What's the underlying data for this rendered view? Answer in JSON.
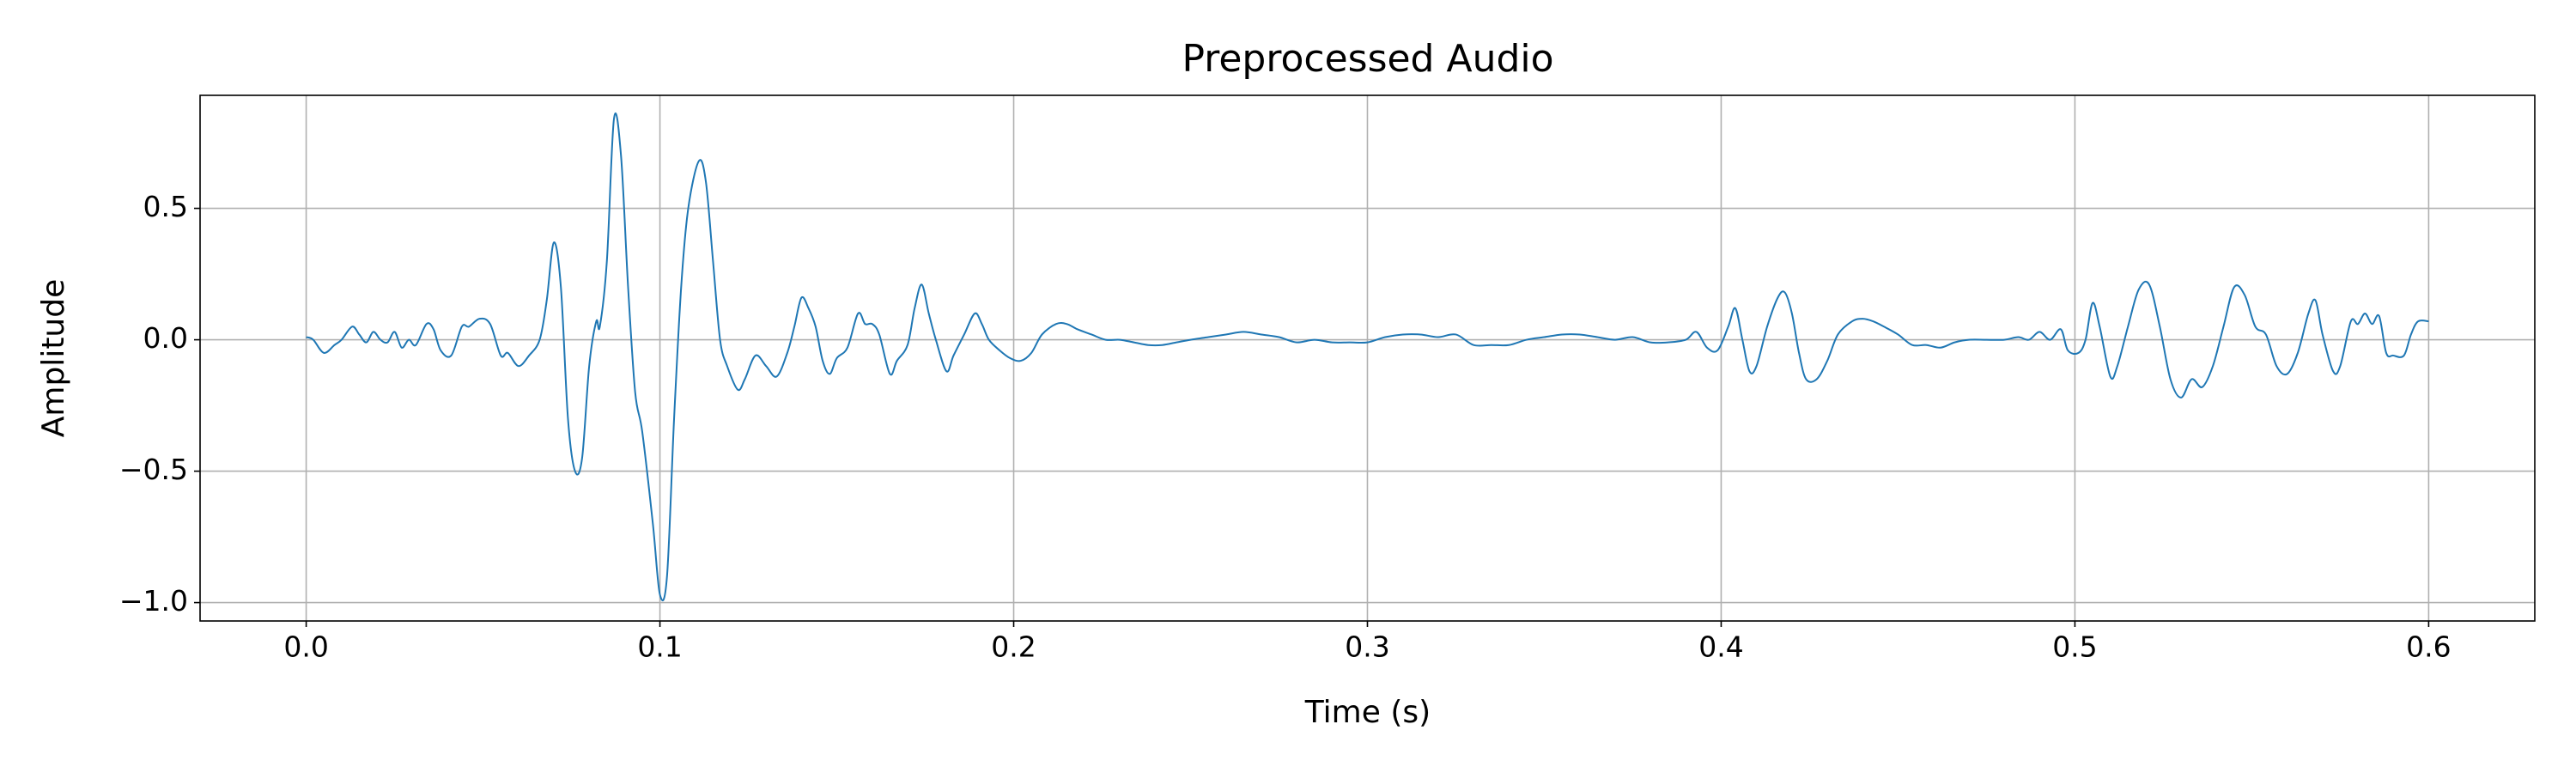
{
  "chart_data": {
    "type": "line",
    "title": "Preprocessed Audio",
    "x_label": "Time (s)",
    "y_label": "Amplitude",
    "xlim": [
      -0.03,
      0.63
    ],
    "ylim": [
      -1.07,
      0.93
    ],
    "xticks": [
      {
        "value": 0,
        "label": "0.0"
      },
      0.1,
      0.2,
      0.3,
      0.4,
      0.5,
      0.6
    ],
    "yticks": [
      {
        "value": -1,
        "label": "−1.0"
      },
      {
        "value": -0.5,
        "label": "−0.5"
      },
      {
        "value": 0,
        "label": "0.0"
      },
      0.5
    ],
    "grid": true,
    "series": [
      {
        "color": "#1f77b4",
        "x": [
          0.0,
          0.002,
          0.005,
          0.008,
          0.01,
          0.013,
          0.015,
          0.017,
          0.019,
          0.021,
          0.023,
          0.025,
          0.027,
          0.029,
          0.031,
          0.034,
          0.036,
          0.038,
          0.041,
          0.044,
          0.046,
          0.049,
          0.052,
          0.055,
          0.057,
          0.06,
          0.063,
          0.066,
          0.068,
          0.07,
          0.072,
          0.074,
          0.076,
          0.078,
          0.08,
          0.082,
          0.083,
          0.085,
          0.087,
          0.089,
          0.091,
          0.093,
          0.095,
          0.098,
          0.1,
          0.102,
          0.104,
          0.106,
          0.108,
          0.111,
          0.113,
          0.115,
          0.117,
          0.119,
          0.122,
          0.124,
          0.127,
          0.13,
          0.133,
          0.136,
          0.138,
          0.14,
          0.142,
          0.144,
          0.146,
          0.148,
          0.15,
          0.153,
          0.156,
          0.158,
          0.16,
          0.162,
          0.165,
          0.167,
          0.17,
          0.172,
          0.174,
          0.176,
          0.178,
          0.181,
          0.183,
          0.186,
          0.189,
          0.191,
          0.193,
          0.196,
          0.199,
          0.202,
          0.205,
          0.208,
          0.212,
          0.215,
          0.218,
          0.222,
          0.226,
          0.23,
          0.234,
          0.238,
          0.242,
          0.246,
          0.25,
          0.255,
          0.26,
          0.265,
          0.27,
          0.275,
          0.28,
          0.285,
          0.29,
          0.295,
          0.3,
          0.305,
          0.31,
          0.315,
          0.32,
          0.325,
          0.33,
          0.335,
          0.34,
          0.345,
          0.35,
          0.355,
          0.36,
          0.365,
          0.37,
          0.375,
          0.38,
          0.385,
          0.39,
          0.393,
          0.396,
          0.399,
          0.402,
          0.404,
          0.406,
          0.408,
          0.41,
          0.413,
          0.416,
          0.418,
          0.42,
          0.422,
          0.424,
          0.427,
          0.43,
          0.433,
          0.437,
          0.44,
          0.443,
          0.446,
          0.45,
          0.454,
          0.458,
          0.462,
          0.466,
          0.47,
          0.475,
          0.48,
          0.484,
          0.487,
          0.49,
          0.493,
          0.496,
          0.498,
          0.501,
          0.503,
          0.505,
          0.507,
          0.51,
          0.512,
          0.515,
          0.518,
          0.521,
          0.524,
          0.527,
          0.53,
          0.533,
          0.536,
          0.539,
          0.542,
          0.545,
          0.548,
          0.551,
          0.554,
          0.557,
          0.56,
          0.563,
          0.566,
          0.568,
          0.57,
          0.573,
          0.575,
          0.578,
          0.58,
          0.582,
          0.584,
          0.586,
          0.588,
          0.59,
          0.593,
          0.595,
          0.597,
          0.6
        ],
        "values": [
          0.01,
          0.0,
          -0.05,
          -0.02,
          0.0,
          0.05,
          0.02,
          -0.01,
          0.03,
          0.0,
          -0.01,
          0.03,
          -0.03,
          0.0,
          -0.02,
          0.06,
          0.04,
          -0.04,
          -0.06,
          0.05,
          0.05,
          0.08,
          0.06,
          -0.06,
          -0.05,
          -0.1,
          -0.06,
          0.0,
          0.15,
          0.37,
          0.2,
          -0.3,
          -0.5,
          -0.45,
          -0.1,
          0.07,
          0.05,
          0.3,
          0.84,
          0.7,
          0.2,
          -0.2,
          -0.35,
          -0.7,
          -0.97,
          -0.9,
          -0.3,
          0.2,
          0.5,
          0.68,
          0.6,
          0.3,
          0.0,
          -0.1,
          -0.19,
          -0.15,
          -0.06,
          -0.1,
          -0.14,
          -0.05,
          0.05,
          0.16,
          0.12,
          0.05,
          -0.08,
          -0.13,
          -0.07,
          -0.03,
          0.1,
          0.06,
          0.06,
          0.02,
          -0.13,
          -0.08,
          -0.02,
          0.12,
          0.21,
          0.1,
          0.0,
          -0.12,
          -0.06,
          0.02,
          0.1,
          0.06,
          0.0,
          -0.04,
          -0.07,
          -0.08,
          -0.05,
          0.02,
          0.06,
          0.06,
          0.04,
          0.02,
          0.0,
          0.0,
          -0.01,
          -0.02,
          -0.02,
          -0.01,
          0.0,
          0.01,
          0.02,
          0.03,
          0.02,
          0.01,
          -0.01,
          0.0,
          -0.01,
          -0.01,
          -0.01,
          0.01,
          0.02,
          0.02,
          0.01,
          0.02,
          -0.02,
          -0.02,
          -0.02,
          0.0,
          0.01,
          0.02,
          0.02,
          0.01,
          0.0,
          0.01,
          -0.01,
          -0.01,
          0.0,
          0.03,
          -0.03,
          -0.04,
          0.05,
          0.12,
          0.0,
          -0.12,
          -0.1,
          0.05,
          0.16,
          0.18,
          0.1,
          -0.05,
          -0.15,
          -0.15,
          -0.08,
          0.02,
          0.07,
          0.08,
          0.07,
          0.05,
          0.02,
          -0.02,
          -0.02,
          -0.03,
          -0.01,
          0.0,
          0.0,
          0.0,
          0.01,
          0.0,
          0.03,
          0.0,
          0.04,
          -0.04,
          -0.05,
          0.0,
          0.14,
          0.05,
          -0.14,
          -0.1,
          0.05,
          0.19,
          0.21,
          0.05,
          -0.15,
          -0.22,
          -0.15,
          -0.18,
          -0.1,
          0.05,
          0.2,
          0.17,
          0.05,
          0.02,
          -0.1,
          -0.13,
          -0.05,
          0.1,
          0.15,
          0.02,
          -0.12,
          -0.1,
          0.07,
          0.06,
          0.1,
          0.06,
          0.09,
          -0.05,
          -0.06,
          -0.06,
          0.02,
          0.07,
          0.07
        ]
      }
    ]
  }
}
